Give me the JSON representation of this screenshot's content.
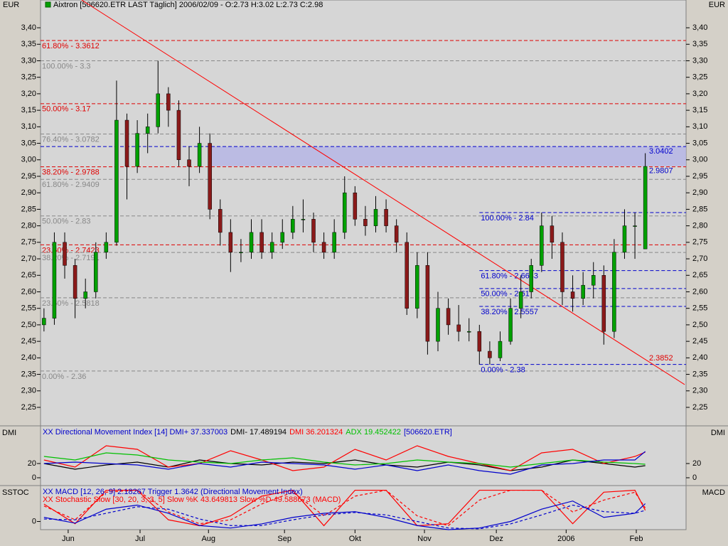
{
  "chart_data": [
    {
      "type": "candlestick",
      "title": "Aixtron [506620.ETR LAST Täglich] 2006/02/09 - O:2.73 H:3.02 L:2.73 C:2.98",
      "y_unit": "EUR",
      "x": [
        1,
        4,
        7,
        10,
        13,
        16,
        19,
        22,
        25,
        28,
        31,
        34,
        37,
        40,
        43,
        46,
        49,
        52,
        55,
        58,
        61,
        64,
        67,
        70,
        73,
        76,
        79,
        82,
        85,
        88,
        91,
        94,
        97,
        100,
        103,
        106,
        109,
        112,
        115,
        118,
        121,
        124,
        127,
        130,
        133,
        136,
        139,
        142,
        145,
        148,
        151,
        154,
        157,
        160,
        163,
        166,
        169,
        172,
        175
      ],
      "open": [
        2.5,
        2.52,
        2.75,
        2.68,
        2.58,
        2.6,
        2.72,
        2.75,
        3.12,
        2.98,
        3.08,
        3.1,
        3.2,
        3.15,
        3.0,
        2.98,
        3.05,
        2.85,
        2.78,
        2.72,
        2.72,
        2.78,
        2.72,
        2.75,
        2.78,
        2.82,
        2.82,
        2.75,
        2.72,
        2.78,
        2.9,
        2.82,
        2.8,
        2.85,
        2.8,
        2.75,
        2.55,
        2.68,
        2.45,
        2.55,
        2.5,
        2.48,
        2.48,
        2.42,
        2.4,
        2.45,
        2.55,
        2.6,
        2.68,
        2.8,
        2.75,
        2.6,
        2.58,
        2.62,
        2.65,
        2.48,
        2.72,
        2.8,
        2.73
      ],
      "high": [
        2.55,
        2.78,
        2.78,
        2.7,
        2.64,
        2.75,
        2.78,
        3.24,
        3.14,
        3.12,
        3.14,
        3.3,
        3.22,
        3.18,
        3.04,
        3.1,
        3.08,
        2.88,
        2.82,
        2.76,
        2.82,
        2.82,
        2.78,
        2.82,
        2.86,
        2.88,
        2.84,
        2.78,
        2.82,
        2.95,
        2.92,
        2.86,
        2.89,
        2.88,
        2.82,
        2.78,
        2.72,
        2.72,
        2.6,
        2.58,
        2.56,
        2.52,
        2.5,
        2.45,
        2.48,
        2.58,
        2.65,
        2.7,
        2.84,
        2.83,
        2.78,
        2.65,
        2.66,
        2.69,
        2.68,
        2.76,
        2.85,
        2.84,
        3.02
      ],
      "low": [
        2.48,
        2.5,
        2.64,
        2.52,
        2.55,
        2.58,
        2.7,
        2.74,
        2.88,
        2.96,
        3.02,
        3.08,
        3.1,
        2.98,
        2.92,
        2.96,
        2.82,
        2.74,
        2.66,
        2.69,
        2.7,
        2.7,
        2.7,
        2.73,
        2.76,
        2.78,
        2.72,
        2.7,
        2.7,
        2.76,
        2.8,
        2.77,
        2.78,
        2.78,
        2.72,
        2.53,
        2.52,
        2.41,
        2.42,
        2.47,
        2.45,
        2.45,
        2.38,
        2.38,
        2.39,
        2.44,
        2.52,
        2.58,
        2.66,
        2.7,
        2.56,
        2.54,
        2.56,
        2.58,
        2.44,
        2.46,
        2.7,
        2.7,
        2.73
      ],
      "close": [
        2.52,
        2.75,
        2.68,
        2.58,
        2.6,
        2.72,
        2.75,
        3.12,
        2.98,
        3.08,
        3.1,
        3.2,
        3.15,
        3.0,
        2.98,
        3.05,
        2.85,
        2.78,
        2.72,
        2.72,
        2.78,
        2.72,
        2.75,
        2.78,
        2.82,
        2.82,
        2.75,
        2.72,
        2.78,
        2.9,
        2.82,
        2.8,
        2.85,
        2.8,
        2.75,
        2.55,
        2.68,
        2.45,
        2.55,
        2.5,
        2.48,
        2.48,
        2.42,
        2.4,
        2.45,
        2.55,
        2.6,
        2.68,
        2.8,
        2.75,
        2.6,
        2.58,
        2.62,
        2.65,
        2.48,
        2.72,
        2.8,
        2.8,
        2.98
      ],
      "up_color": "#00a000",
      "down_color": "#8b1a1a",
      "xlim": [
        0,
        186.8
      ],
      "ylim": [
        2.2,
        3.48
      ],
      "xticks": [
        {
          "value": 8.0,
          "label": "Jun"
        },
        {
          "value": 28.8,
          "label": "Jul"
        },
        {
          "value": 48.6,
          "label": "Aug"
        },
        {
          "value": 70.6,
          "label": "Sep"
        },
        {
          "value": 91.0,
          "label": "Okt"
        },
        {
          "value": 111.1,
          "label": "Nov"
        },
        {
          "value": 131.9,
          "label": "Dez"
        },
        {
          "value": 152.1,
          "label": "2006"
        },
        {
          "value": 172.4,
          "label": "Feb"
        }
      ],
      "yticks": [
        {
          "value": 3.4,
          "label": "3,40"
        },
        {
          "value": 3.35,
          "label": "3,35"
        },
        {
          "value": 3.3,
          "label": "3,30"
        },
        {
          "value": 3.25,
          "label": "3,25"
        },
        {
          "value": 3.2,
          "label": "3,20"
        },
        {
          "value": 3.15,
          "label": "3,15"
        },
        {
          "value": 3.1,
          "label": "3,10"
        },
        {
          "value": 3.05,
          "label": "3,05"
        },
        {
          "value": 3.0,
          "label": "3,00"
        },
        {
          "value": 2.95,
          "label": "2,95"
        },
        {
          "value": 2.9,
          "label": "2,90"
        },
        {
          "value": 2.85,
          "label": "2,85"
        },
        {
          "value": 2.8,
          "label": "2,80"
        },
        {
          "value": 2.75,
          "label": "2,75"
        },
        {
          "value": 2.7,
          "label": "2,70"
        },
        {
          "value": 2.65,
          "label": "2,65"
        },
        {
          "value": 2.6,
          "label": "2,60"
        },
        {
          "value": 2.55,
          "label": "2,55"
        },
        {
          "value": 2.5,
          "label": "2,50"
        },
        {
          "value": 2.45,
          "label": "2,45"
        },
        {
          "value": 2.4,
          "label": "2,40"
        },
        {
          "value": 2.35,
          "label": "2,35"
        },
        {
          "value": 2.3,
          "label": "2,30"
        },
        {
          "value": 2.25,
          "label": "2,25"
        }
      ],
      "levels": [
        {
          "value": 3.3612,
          "label": "61.80% - 3.3612",
          "color": "#e00000"
        },
        {
          "value": 3.17,
          "label": "50.00% - 3.17",
          "color": "#e00000"
        },
        {
          "value": 2.9788,
          "label": "38.20% - 2.9788",
          "color": "#e00000"
        },
        {
          "value": 2.7423,
          "label": "23.60% - 2.7423",
          "color": "#e00000"
        },
        {
          "value": 3.3,
          "label": "100.00% - 3.3",
          "color": "#888888"
        },
        {
          "value": 3.0782,
          "label": "76.40% - 3.0782",
          "color": "#888888"
        },
        {
          "value": 2.9409,
          "label": "61.80% - 2.9409",
          "color": "#888888"
        },
        {
          "value": 2.83,
          "label": "50.00% - 2.83",
          "color": "#888888"
        },
        {
          "value": 2.7191,
          "label": "38.20% - 2.7191",
          "color": "#888888"
        },
        {
          "value": 2.5818,
          "label": "23.60% - 2.5818",
          "color": "#888888"
        },
        {
          "value": 2.36,
          "label": "0.00% - 2.36",
          "color": "#888888"
        },
        {
          "value": 2.84,
          "label": "100.00% - 2.84",
          "color": "#0000cc",
          "x_from": 127
        },
        {
          "value": 2.6643,
          "label": "61.80% - 2.6643",
          "color": "#0000cc",
          "x_from": 127
        },
        {
          "value": 2.61,
          "label": "50.00% - 2.61",
          "color": "#0000cc",
          "x_from": 127
        },
        {
          "value": 2.5557,
          "label": "38.20% - 2.5557",
          "color": "#0000cc",
          "x_from": 127
        },
        {
          "value": 2.38,
          "label": "0.00% - 2.38",
          "color": "#0000cc",
          "x_from": 127
        }
      ],
      "zone": {
        "from": 2.9807,
        "to": 3.0402,
        "x_from": 48.6,
        "color": "#b4b4e6"
      },
      "trendline": {
        "x": [
          11.9,
          186.4
        ],
        "y": [
          3.484,
          2.319
        ],
        "color": "#ff0000"
      },
      "annotations": [
        {
          "value": 3.0402,
          "label": "3.0402",
          "color": "#0000cc"
        },
        {
          "value": 2.9807,
          "label": "2.9807",
          "color": "#0000cc"
        },
        {
          "value": 2.3852,
          "label": "2.3852",
          "color": "#e00000"
        }
      ]
    },
    {
      "type": "line",
      "left_label": "DMI",
      "right_label": "DMI",
      "legend_lines": [
        [
          {
            "text": "XX Directional Movement Index [14] DMI+ 37.337003",
            "color": "#0000cc"
          },
          {
            "text": "DMI- 17.489194",
            "color": "#000000"
          },
          {
            "text": "DMI 36.201324",
            "color": "#ff0000"
          },
          {
            "text": "ADX 19.452422",
            "color": "#00c000"
          },
          {
            "text": "[506620.ETR]",
            "color": "#0000cc"
          }
        ]
      ],
      "xlim": [
        0,
        186.8
      ],
      "ylim": [
        -8,
        72
      ],
      "yticks": [
        0,
        20
      ],
      "tick_sides": [
        "left",
        "right"
      ],
      "x": [
        1,
        10,
        19,
        28,
        37,
        46,
        55,
        64,
        73,
        82,
        91,
        100,
        109,
        118,
        127,
        136,
        145,
        154,
        163,
        172,
        175
      ],
      "series": [
        {
          "name": "DMI-",
          "color": "#000000",
          "values": [
            20,
            12,
            18,
            22,
            15,
            25,
            20,
            18,
            22,
            20,
            25,
            18,
            15,
            22,
            18,
            10,
            15,
            25,
            20,
            15,
            17
          ]
        },
        {
          "name": "DMI",
          "color": "#ff0000",
          "values": [
            25,
            15,
            45,
            40,
            15,
            20,
            38,
            25,
            10,
            15,
            40,
            25,
            45,
            30,
            20,
            10,
            35,
            40,
            20,
            30,
            36
          ]
        },
        {
          "name": "ADX",
          "color": "#00c000",
          "values": [
            30,
            25,
            35,
            32,
            25,
            22,
            20,
            25,
            28,
            22,
            18,
            20,
            25,
            22,
            20,
            15,
            20,
            25,
            22,
            20,
            19
          ]
        },
        {
          "name": "DMI+",
          "color": "#0000cc",
          "values": [
            20,
            22,
            20,
            18,
            12,
            20,
            15,
            22,
            20,
            18,
            12,
            18,
            10,
            18,
            10,
            5,
            18,
            20,
            25,
            25,
            37
          ]
        }
      ]
    },
    {
      "type": "line",
      "left_label": "SSTOC",
      "right_label": "MACD",
      "legend_lines": [
        [
          {
            "text": "XX MACD [12, 26, 9] 2.18267 Trigger 1.3642 (Directional Movement Index)",
            "color": "#0000cc"
          }
        ],
        [
          {
            "text": "XX Stochastic Slow [30, 20, 3, 3, 5] Slow %K 43.649813 Slow %D 49.588673 (MACD)",
            "color": "#ff0000"
          }
        ]
      ],
      "xlim": [
        0,
        186.8
      ],
      "ylim": [
        -1,
        4.3
      ],
      "y2lim": [
        -5,
        105
      ],
      "yticks": [
        0
      ],
      "tick_sides": [
        "left"
      ],
      "x": [
        1,
        10,
        19,
        28,
        37,
        46,
        55,
        64,
        73,
        82,
        91,
        100,
        109,
        118,
        127,
        136,
        145,
        154,
        163,
        172,
        175
      ],
      "series": [
        {
          "name": "Slow %K",
          "color": "#ff0000",
          "axis": "y2",
          "values": [
            60,
            10,
            95,
            95,
            20,
            5,
            30,
            80,
            95,
            5,
            95,
            95,
            5,
            10,
            95,
            95,
            95,
            10,
            90,
            95,
            44
          ]
        },
        {
          "name": "Slow %D",
          "color": "#ff0000",
          "axis": "y2",
          "dash": true,
          "values": [
            55,
            20,
            90,
            95,
            40,
            10,
            20,
            60,
            90,
            30,
            80,
            95,
            30,
            5,
            70,
            95,
            95,
            40,
            70,
            90,
            50
          ]
        },
        {
          "name": "MACD",
          "color": "#0000cc",
          "values": [
            0.5,
            -0.2,
            1.5,
            2.0,
            1.0,
            -0.5,
            -0.8,
            -0.3,
            0.5,
            1.0,
            1.2,
            0.5,
            -0.5,
            -1.0,
            -0.8,
            0,
            1.5,
            2.5,
            0.5,
            1.0,
            2.18
          ]
        },
        {
          "name": "Trigger",
          "color": "#0000cc",
          "dash": true,
          "values": [
            0.3,
            0.2,
            1.0,
            1.8,
            1.5,
            0.3,
            -0.5,
            -0.5,
            0.2,
            0.8,
            1.1,
            0.8,
            0,
            -0.8,
            -0.9,
            -0.3,
            0.8,
            2.0,
            1.2,
            1.0,
            1.36
          ]
        }
      ]
    }
  ]
}
